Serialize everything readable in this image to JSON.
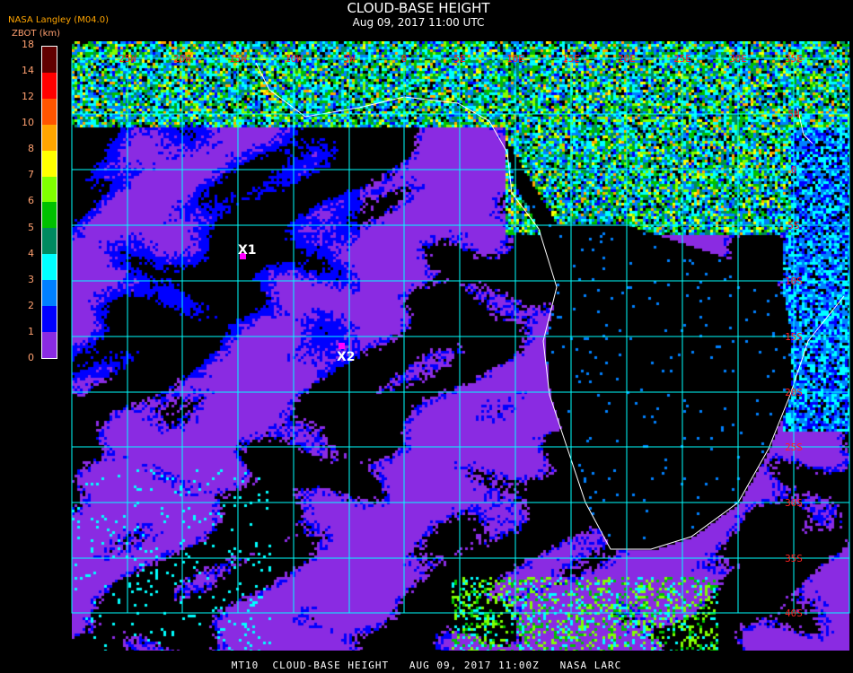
{
  "header": {
    "title": "CLOUD-BASE HEIGHT",
    "subtitle": "Aug 09, 2017 11:00 UTC",
    "source": "NASA Langley (M04.0)"
  },
  "legend": {
    "label": "ZBOT (km)",
    "ticks": [
      "0",
      "1",
      "2",
      "3",
      "4",
      "5",
      "6",
      "7",
      "8",
      "10",
      "12",
      "14",
      "18"
    ],
    "colors": [
      "#8a2be2",
      "#0000ff",
      "#0080ff",
      "#00ffff",
      "#008a60",
      "#00c000",
      "#80ff00",
      "#ffff00",
      "#ffa500",
      "#ff5500",
      "#ff0000",
      "#600000"
    ]
  },
  "map": {
    "lon_labels": [
      "25W",
      "20W",
      "15W",
      "10W",
      "5W",
      "0",
      "5E",
      "10E",
      "15E",
      "20E",
      "25E",
      "30E",
      "35E"
    ],
    "lat_labels": [
      "5N",
      "0",
      "5S",
      "10S",
      "15S",
      "20S",
      "25S",
      "30S",
      "35S",
      "40S"
    ],
    "grid_color": "#00ffff",
    "coastline_color": "#ffffff",
    "markers": [
      {
        "label": "X1",
        "color": "#ff00ff"
      },
      {
        "label": "X2",
        "color": "#ff00ff"
      }
    ]
  },
  "footer": {
    "text": "MT10  CLOUD-BASE HEIGHT   AUG 09, 2017 11:00Z   NASA LARC"
  }
}
